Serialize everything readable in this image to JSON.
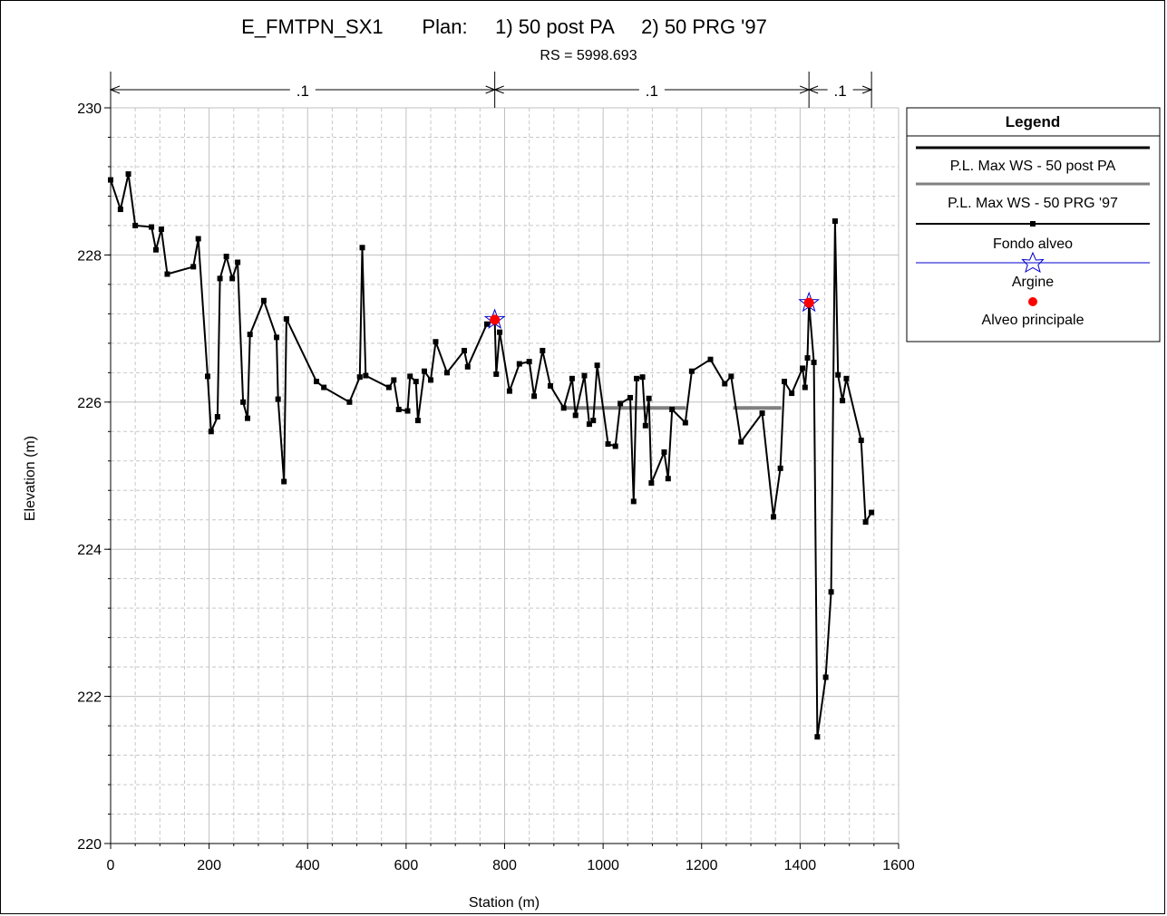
{
  "chart_data": {
    "type": "line",
    "title": "E_FMTPN_SX1       Plan:     1) 50 post PA     2) 50 PRG '97",
    "subtitle": "RS = 5998.693",
    "xlabel": "Station (m)",
    "ylabel": "Elevation (m)",
    "xlim": [
      0,
      1600
    ],
    "ylim": [
      220,
      230
    ],
    "x_ticks": [
      "0",
      "200",
      "400",
      "600",
      "800",
      "1000",
      "1200",
      "1400",
      "1600"
    ],
    "y_ticks": [
      "220",
      "222",
      "224",
      "226",
      "228",
      "230"
    ],
    "grid": true,
    "legend_position": "right",
    "legend": {
      "title": "Legend",
      "entries": [
        "P.L. Max WS - 50 post PA",
        "P.L. Max WS - 50 PRG '97",
        "Fondo alveo",
        "Argine",
        "Alveo principale"
      ]
    },
    "mannings": [
      {
        "from": 0,
        "to": 780,
        "label": ".1"
      },
      {
        "from": 780,
        "to": 1418,
        "label": ".1"
      },
      {
        "from": 1418,
        "to": 1545,
        "label": ".1"
      }
    ],
    "series": [
      {
        "name": "Fondo alveo",
        "color": "#000000",
        "points": [
          [
            0,
            229.02
          ],
          [
            20,
            228.62
          ],
          [
            36,
            229.1
          ],
          [
            50,
            228.4
          ],
          [
            83,
            228.38
          ],
          [
            92,
            228.07
          ],
          [
            103,
            228.35
          ],
          [
            115,
            227.74
          ],
          [
            168,
            227.84
          ],
          [
            178,
            228.22
          ],
          [
            197,
            226.35
          ],
          [
            204,
            225.6
          ],
          [
            217,
            225.8
          ],
          [
            222,
            227.68
          ],
          [
            235,
            227.98
          ],
          [
            247,
            227.68
          ],
          [
            258,
            227.9
          ],
          [
            269,
            226
          ],
          [
            278,
            225.78
          ],
          [
            283,
            226.92
          ],
          [
            311,
            227.38
          ],
          [
            337,
            226.88
          ],
          [
            340,
            226.04
          ],
          [
            352,
            224.92
          ],
          [
            357,
            227.13
          ],
          [
            418,
            226.28
          ],
          [
            433,
            226.2
          ],
          [
            485,
            226.0
          ],
          [
            506,
            226.34
          ],
          [
            511,
            228.1
          ],
          [
            518,
            226.36
          ],
          [
            565,
            226.2
          ],
          [
            575,
            226.3
          ],
          [
            585,
            225.9
          ],
          [
            603,
            225.88
          ],
          [
            608,
            226.35
          ],
          [
            620,
            226.28
          ],
          [
            624,
            225.75
          ],
          [
            637,
            226.42
          ],
          [
            650,
            226.3
          ],
          [
            660,
            226.82
          ],
          [
            683,
            226.4
          ],
          [
            718,
            226.7
          ],
          [
            725,
            226.48
          ],
          [
            764,
            227.06
          ],
          [
            780,
            227.12
          ],
          [
            783,
            226.38
          ],
          [
            790,
            226.95
          ],
          [
            810,
            226.15
          ],
          [
            830,
            226.52
          ],
          [
            850,
            226.55
          ],
          [
            860,
            226.08
          ],
          [
            877,
            226.7
          ],
          [
            893,
            226.22
          ],
          [
            920,
            225.92
          ],
          [
            937,
            226.32
          ],
          [
            944,
            225.82
          ],
          [
            962,
            226.36
          ],
          [
            972,
            225.7
          ],
          [
            980,
            225.75
          ],
          [
            988,
            226.5
          ],
          [
            1010,
            225.43
          ],
          [
            1025,
            225.4
          ],
          [
            1035,
            225.98
          ],
          [
            1055,
            226.06
          ],
          [
            1062,
            224.65
          ],
          [
            1068,
            226.32
          ],
          [
            1080,
            226.34
          ],
          [
            1086,
            225.68
          ],
          [
            1093,
            226.05
          ],
          [
            1098,
            224.9
          ],
          [
            1124,
            225.32
          ],
          [
            1132,
            224.96
          ],
          [
            1140,
            225.9
          ],
          [
            1167,
            225.72
          ],
          [
            1180,
            226.42
          ],
          [
            1218,
            226.58
          ],
          [
            1247,
            226.25
          ],
          [
            1260,
            226.35
          ],
          [
            1280,
            225.46
          ],
          [
            1323,
            225.85
          ],
          [
            1346,
            224.44
          ],
          [
            1360,
            225.1
          ],
          [
            1368,
            226.28
          ],
          [
            1383,
            226.12
          ],
          [
            1405,
            226.46
          ],
          [
            1410,
            226.2
          ],
          [
            1415,
            226.6
          ],
          [
            1418,
            227.35
          ],
          [
            1428,
            226.54
          ],
          [
            1435,
            221.45
          ],
          [
            1452,
            222.26
          ],
          [
            1463,
            223.42
          ],
          [
            1471,
            228.46
          ],
          [
            1477,
            226.37
          ],
          [
            1486,
            226.02
          ],
          [
            1494,
            226.32
          ],
          [
            1524,
            225.48
          ],
          [
            1533,
            224.37
          ],
          [
            1545,
            224.5
          ]
        ]
      },
      {
        "name": "P.L. Max WS - 50 PRG '97",
        "color": "#808080",
        "segments": [
          [
            [
              918,
              225.92
            ],
            [
              1168,
              225.92
            ]
          ],
          [
            [
              1264,
              225.92
            ],
            [
              1362,
              225.92
            ]
          ]
        ]
      }
    ],
    "bank_stations": [
      [
        780,
        227.12
      ],
      [
        1418,
        227.35
      ]
    ]
  }
}
